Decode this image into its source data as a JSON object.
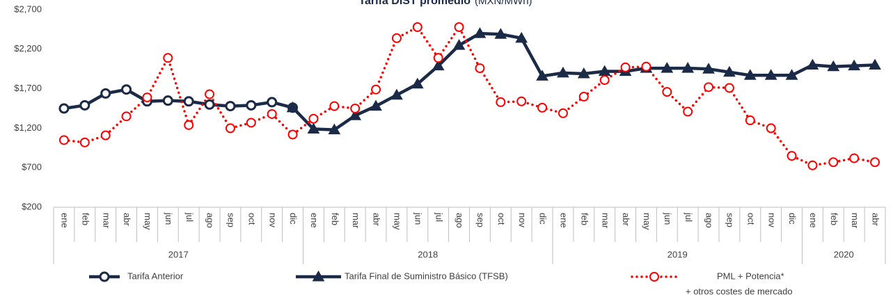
{
  "chart_data": {
    "type": "line",
    "title": "Tarifa DIST promedio",
    "subtitle": "(MXN/MWh)",
    "categories": [
      "ene",
      "feb",
      "mar",
      "abr",
      "may",
      "jun",
      "jul",
      "ago",
      "sep",
      "oct",
      "nov",
      "dic",
      "ene",
      "feb",
      "mar",
      "abr",
      "may",
      "jun",
      "jul",
      "ago",
      "sep",
      "oct",
      "nov",
      "dic",
      "ene",
      "feb",
      "mar",
      "abr",
      "may",
      "jun",
      "jul",
      "ago",
      "sep",
      "oct",
      "nov",
      "dic",
      "ene",
      "feb",
      "mar",
      "abr"
    ],
    "groups": [
      {
        "label": "2017",
        "count": 12
      },
      {
        "label": "2018",
        "count": 12
      },
      {
        "label": "2019",
        "count": 12
      },
      {
        "label": "2020",
        "count": 4
      }
    ],
    "ylim": [
      200,
      2700
    ],
    "yticks": [
      {
        "value": 200,
        "label": "$200"
      },
      {
        "value": 700,
        "label": "$700"
      },
      {
        "value": 1200,
        "label": "$1,200"
      },
      {
        "value": 1700,
        "label": "$1,700"
      },
      {
        "value": 2200,
        "label": "$2,200"
      },
      {
        "value": 2700,
        "label": "$2,700"
      }
    ],
    "grid": false,
    "legend": "bottom",
    "series": [
      {
        "name": "Tarifa Anterior",
        "color": "#1b2a47",
        "marker": "circle",
        "values": [
          1450,
          1490,
          1640,
          1690,
          1540,
          1550,
          1540,
          1500,
          1480,
          1490,
          1530,
          1460,
          null,
          null,
          null,
          null,
          null,
          null,
          null,
          null,
          null,
          null,
          null,
          null,
          null,
          null,
          null,
          null,
          null,
          null,
          null,
          null,
          null,
          null,
          null,
          null,
          null,
          null,
          null,
          null
        ]
      },
      {
        "name": "Tarifa Final de Suministro Básico (TFSB)",
        "color": "#1b2a47",
        "marker": "triangle",
        "values": [
          null,
          null,
          null,
          null,
          null,
          null,
          null,
          null,
          null,
          null,
          null,
          1460,
          1190,
          1180,
          1360,
          1480,
          1620,
          1760,
          1990,
          2250,
          2400,
          2390,
          2340,
          1860,
          1900,
          1890,
          1920,
          1920,
          1960,
          1960,
          1960,
          1950,
          1910,
          1870,
          1870,
          1870,
          2000,
          1980,
          1990,
          2000
        ]
      },
      {
        "name": "PML + Potencia*",
        "note": "+ otros costes de mercado",
        "color": "#ff0000",
        "marker": "circle",
        "dotted": true,
        "values": [
          1050,
          1020,
          1110,
          1350,
          1590,
          2090,
          1240,
          1630,
          1200,
          1270,
          1380,
          1120,
          1320,
          1480,
          1450,
          1690,
          2340,
          2480,
          2090,
          2480,
          1960,
          1530,
          1540,
          1460,
          1390,
          1600,
          1810,
          1970,
          1980,
          1660,
          1410,
          1720,
          1710,
          1300,
          1200,
          850,
          730,
          770,
          820,
          770
        ]
      }
    ]
  }
}
